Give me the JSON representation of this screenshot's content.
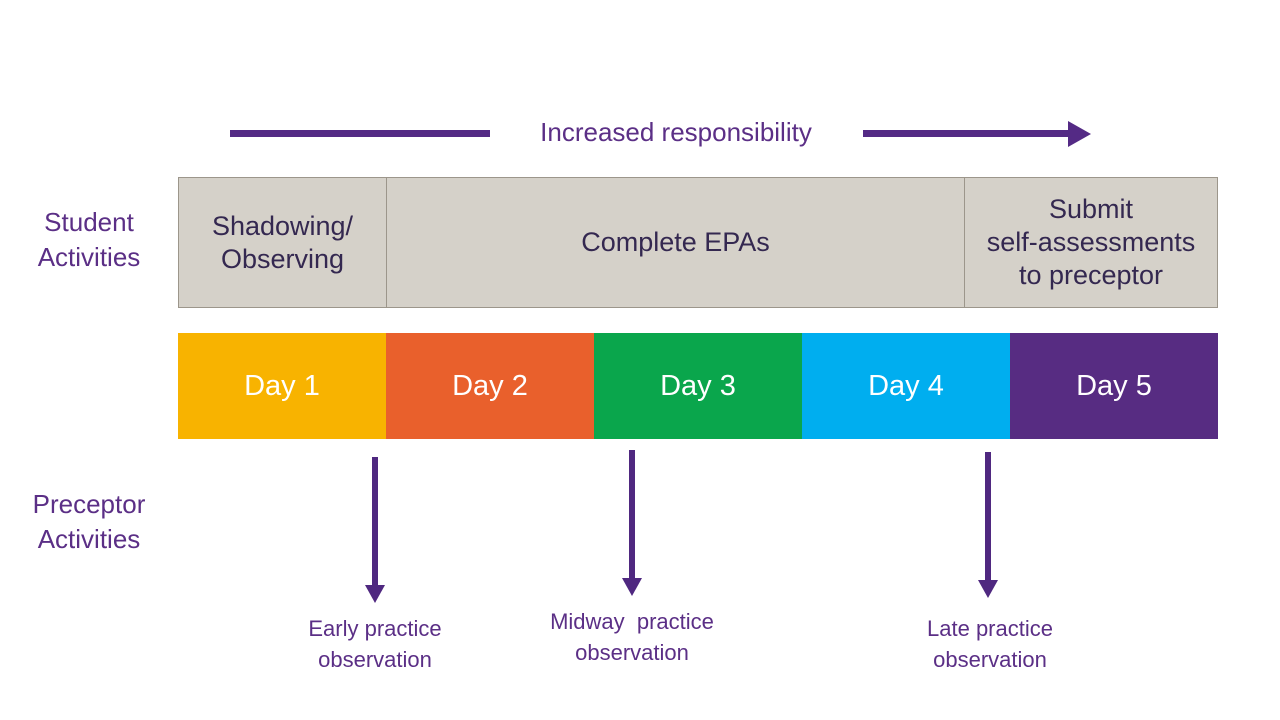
{
  "colors": {
    "accent_purple": "#542A85",
    "label_purple": "#5B2F86",
    "dark_box_text": "#342850",
    "gray_bar_bg": "#D5D1C9",
    "gray_bar_border": "#9C968B"
  },
  "top": {
    "label": "Increased responsibility"
  },
  "student_row": {
    "label": "Student\nActivities",
    "sections": [
      {
        "label": "Shadowing/\nObserving"
      },
      {
        "label": "Complete EPAs"
      },
      {
        "label": "Submit\nself-assessments\nto preceptor"
      }
    ]
  },
  "timeline": {
    "days": [
      {
        "label": "Day 1",
        "color": "#F8B300"
      },
      {
        "label": "Day 2",
        "color": "#E9602C"
      },
      {
        "label": "Day 3",
        "color": "#0AA64C"
      },
      {
        "label": "Day 4",
        "color": "#00AEEF"
      },
      {
        "label": "Day 5",
        "color": "#572C82"
      }
    ]
  },
  "preceptor_row": {
    "label": "Preceptor\nActivities",
    "observations": [
      {
        "label": "Early practice\nobservation"
      },
      {
        "label": "Midway  practice\nobservation"
      },
      {
        "label": "Late practice\nobservation"
      }
    ]
  }
}
